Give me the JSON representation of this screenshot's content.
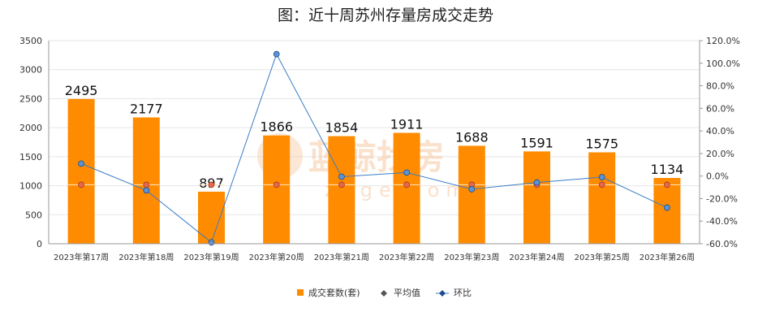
{
  "chart_data": {
    "type": "bar",
    "title": "图：近十周苏州存量房成交走势",
    "categories": [
      "2023年第17周",
      "2023年第18周",
      "2023年第19周",
      "2023年第20周",
      "2023年第21周",
      "2023年第22周",
      "2023年第23周",
      "2023年第24周",
      "2023年第25周",
      "2023年第26周"
    ],
    "series": [
      {
        "name": "成交套数(套)",
        "type": "bar",
        "axis": "left",
        "color": "#ff8c00",
        "values": [
          2495,
          2177,
          897,
          1866,
          1854,
          1911,
          1688,
          1591,
          1575,
          1134
        ]
      },
      {
        "name": "平均值",
        "type": "scatter",
        "axis": "left",
        "color": "#e8664a",
        "values": [
          1100,
          1100,
          1100,
          1100,
          1100,
          1100,
          1100,
          1100,
          1100,
          1100
        ]
      },
      {
        "name": "环比",
        "type": "line",
        "axis": "right",
        "color": "#3a7cc4",
        "values": [
          11.0,
          -12.7,
          -58.8,
          108.0,
          -0.6,
          3.1,
          -11.7,
          -5.7,
          -1.0,
          -28.0
        ]
      }
    ],
    "ylim_left": [
      0,
      3500
    ],
    "yticks_left": [
      0,
      500,
      1000,
      1500,
      2000,
      2500,
      3000,
      3500
    ],
    "ylim_right": [
      -60,
      120
    ],
    "yticks_right": [
      "-60.0%",
      "-40.0%",
      "-20.0%",
      "0.0%",
      "20.0%",
      "40.0%",
      "60.0%",
      "80.0%",
      "100.0%",
      "120.0%"
    ],
    "legend_position": "bottom",
    "grid": true
  },
  "watermark": {
    "main": "蓝鲸找房",
    "sub": "zuge.com"
  }
}
